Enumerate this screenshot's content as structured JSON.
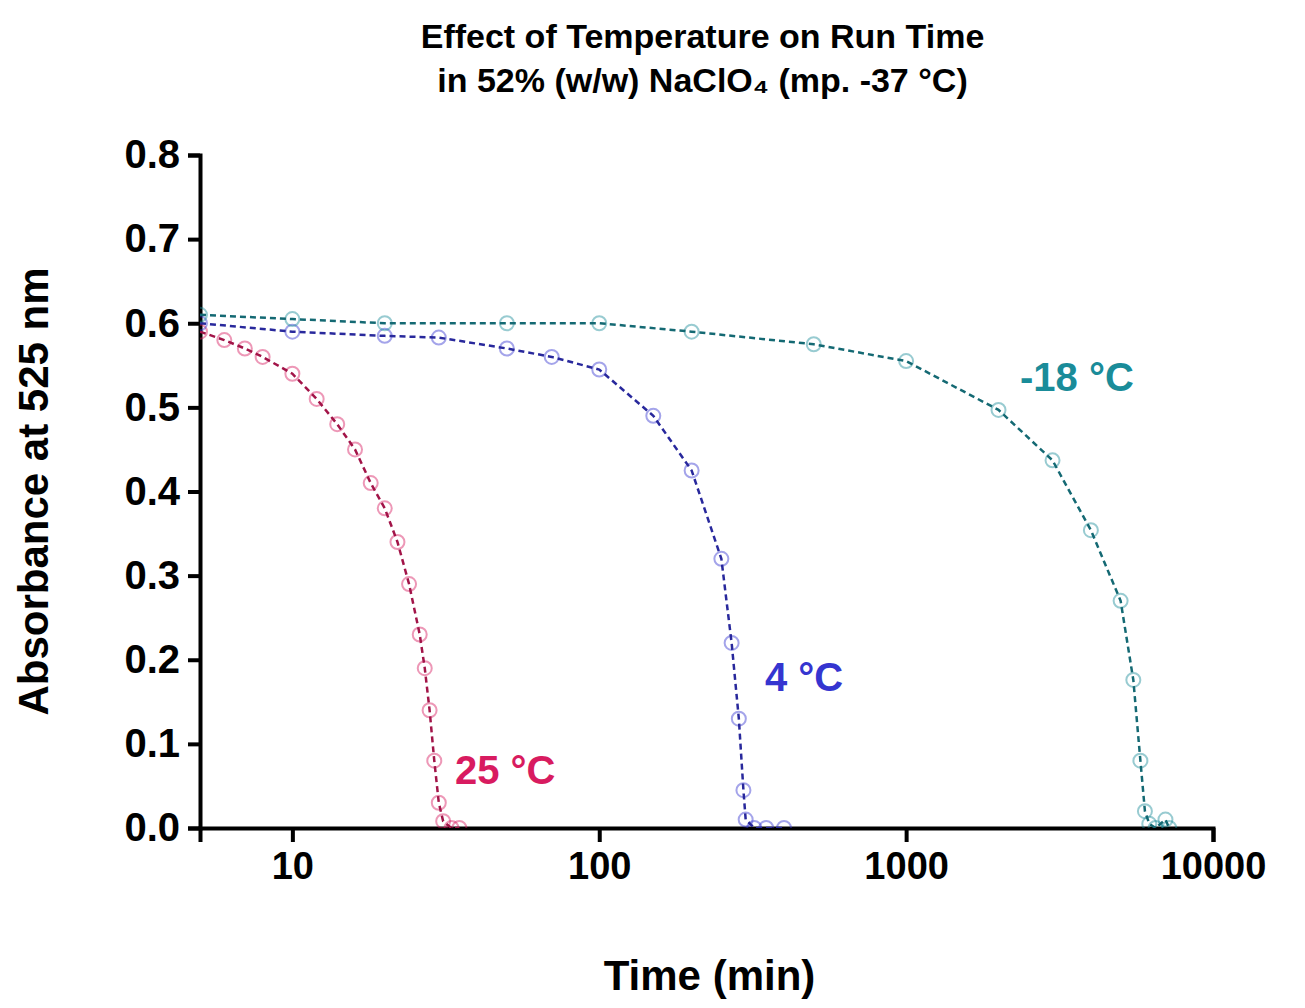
{
  "chart_data": {
    "type": "line",
    "title": "Effect of Temperature on Run Time",
    "subtitle": "in 52% (w/w) NaClO₄ (mp. -37 °C)",
    "x_label": "Time (min)",
    "y_label": "Absorbance at 525 nm",
    "log": "x",
    "grid": false,
    "marker": "circle",
    "line_style": "dashed",
    "xlim": [
      5,
      10000
    ],
    "xticks": [
      10,
      100,
      1000,
      10000
    ],
    "ylim": [
      0,
      0.8
    ],
    "yticks": [
      {
        "value": 0,
        "label": "0.0"
      },
      0.1,
      0.2,
      0.3,
      0.4,
      0.5,
      0.6,
      0.7,
      0.8
    ],
    "series": [
      {
        "name": "25 °C",
        "color": "#d81b60",
        "x": [
          5,
          6,
          7,
          8,
          10,
          12,
          14,
          16,
          18,
          20,
          22,
          24,
          26,
          27,
          28,
          29,
          30,
          31,
          33,
          35
        ],
        "values": [
          0.59,
          0.58,
          0.57,
          0.56,
          0.54,
          0.51,
          0.48,
          0.45,
          0.41,
          0.38,
          0.34,
          0.29,
          0.23,
          0.19,
          0.14,
          0.08,
          0.03,
          0.008,
          0.0,
          0.0
        ]
      },
      {
        "name": "4 °C",
        "color": "#3535d0",
        "x": [
          5,
          10,
          20,
          30,
          50,
          70,
          100,
          150,
          200,
          250,
          270,
          285,
          295,
          300,
          320,
          350,
          400
        ],
        "values": [
          0.6,
          0.59,
          0.585,
          0.583,
          0.57,
          0.56,
          0.545,
          0.49,
          0.425,
          0.32,
          0.22,
          0.13,
          0.045,
          0.01,
          0.0,
          0.0,
          0.0
        ]
      },
      {
        "name": "-18 °C",
        "color": "#1a8c99",
        "x": [
          5,
          10,
          20,
          50,
          100,
          200,
          500,
          1000,
          2000,
          3000,
          4000,
          5000,
          5500,
          5800,
          6000,
          6200,
          6500,
          7000,
          7200
        ],
        "values": [
          0.61,
          0.605,
          0.6,
          0.6,
          0.6,
          0.59,
          0.575,
          0.555,
          0.497,
          0.437,
          0.354,
          0.27,
          0.176,
          0.08,
          0.02,
          0.005,
          0.0,
          0.01,
          0.0
        ]
      }
    ]
  }
}
